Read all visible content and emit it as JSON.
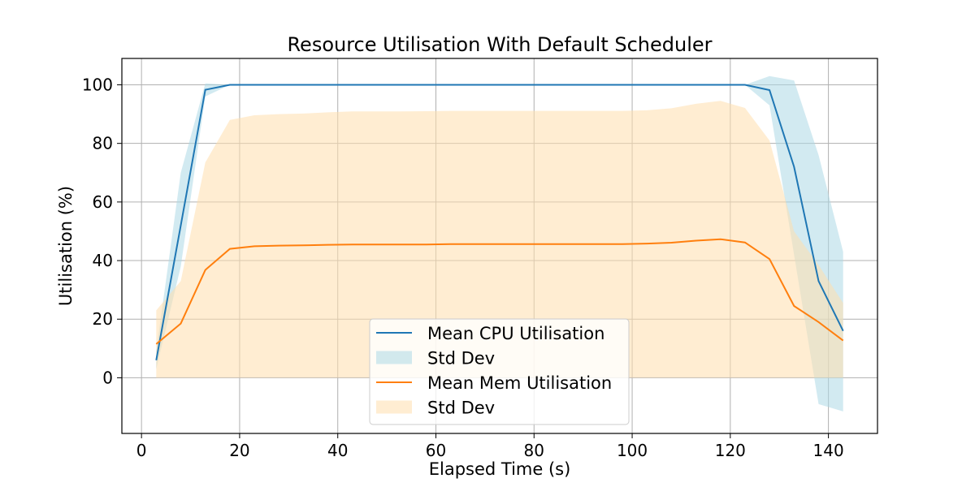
{
  "chart_data": {
    "type": "line",
    "title": "Resource Utilisation With Default Scheduler",
    "xlabel": "Elapsed Time (s)",
    "ylabel": "Utilisation (%)",
    "xlim": [
      -4,
      150
    ],
    "ylim": [
      -19,
      109
    ],
    "xticks": [
      0,
      20,
      40,
      60,
      80,
      100,
      120,
      140
    ],
    "yticks": [
      0,
      20,
      40,
      60,
      80,
      100
    ],
    "grid": true,
    "legend_position": "bottom-center",
    "x": [
      3,
      8,
      13,
      18,
      23,
      28,
      33,
      38,
      43,
      48,
      53,
      58,
      63,
      68,
      73,
      78,
      83,
      88,
      93,
      98,
      103,
      108,
      113,
      118,
      123,
      128,
      133,
      138,
      143
    ],
    "series": [
      {
        "name": "Mean CPU Utilisation",
        "color": "#1f77b4",
        "values": [
          6,
          52,
          98.3,
          100,
          100,
          100,
          100,
          100,
          100,
          100,
          100,
          100,
          100,
          100,
          100,
          100,
          100,
          100,
          100,
          100,
          100,
          100,
          100,
          100,
          100,
          98.2,
          72,
          33,
          16
        ],
        "band_name": "Std Dev",
        "band_color": "#add8e6",
        "band_lower": [
          3,
          38,
          96,
          100,
          100,
          100,
          100,
          100,
          100,
          100,
          100,
          100,
          100,
          100,
          100,
          100,
          100,
          100,
          100,
          100,
          100,
          100,
          100,
          100,
          100,
          93,
          42,
          -9,
          -11.5
        ],
        "band_upper": [
          9,
          70,
          100.5,
          100,
          100,
          100,
          100,
          100,
          100,
          100,
          100,
          100,
          100,
          100,
          100,
          100,
          100,
          100,
          100,
          100,
          100,
          100,
          100,
          100,
          100,
          103,
          101.5,
          76,
          43
        ]
      },
      {
        "name": "Mean Mem Utilisation",
        "color": "#ff7f0e",
        "values": [
          11.5,
          18.5,
          36.8,
          44,
          44.9,
          45.1,
          45.2,
          45.4,
          45.5,
          45.5,
          45.5,
          45.5,
          45.6,
          45.6,
          45.6,
          45.6,
          45.6,
          45.6,
          45.6,
          45.6,
          45.8,
          46.1,
          46.8,
          47.3,
          46.2,
          40.5,
          24.5,
          19,
          12.7
        ],
        "band_name": "Std Dev",
        "band_color": "#ffdead",
        "band_lower": [
          0,
          0,
          0,
          0,
          0,
          0,
          0,
          0,
          0,
          0,
          0,
          0,
          0,
          0,
          0,
          0,
          0,
          0,
          0,
          0,
          0,
          0,
          0,
          0,
          0,
          0,
          0,
          0,
          0
        ],
        "band_upper": [
          23,
          33,
          73.5,
          88,
          89.6,
          90,
          90.2,
          90.6,
          90.9,
          90.9,
          90.9,
          91,
          91.1,
          91.1,
          91.1,
          91.1,
          91.1,
          91.1,
          91.1,
          91.1,
          91.3,
          92,
          93.5,
          94.5,
          92.1,
          81,
          50,
          38.5,
          25.5
        ]
      }
    ]
  }
}
